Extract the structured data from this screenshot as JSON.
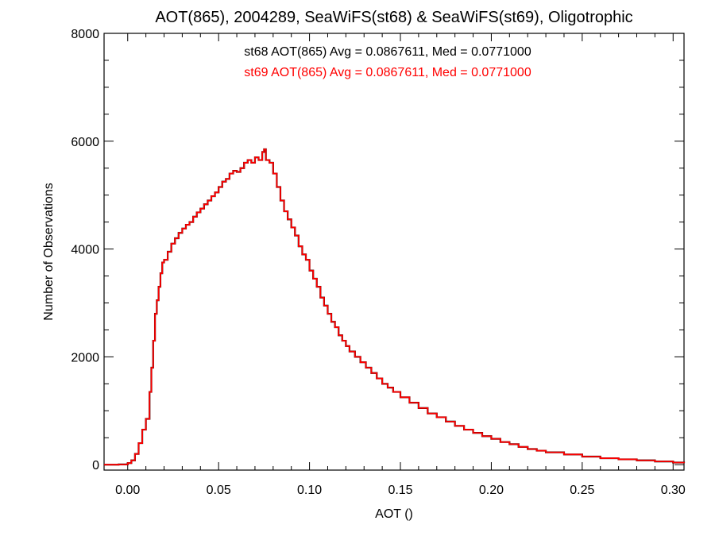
{
  "chart_data": {
    "type": "line",
    "title": "AOT(865), 2004289, SeaWiFS(st68) & SeaWiFS(st69), Oligotrophic",
    "xlabel": "AOT ()",
    "ylabel": "Number of Observations",
    "xlim": [
      -0.013,
      0.306
    ],
    "ylim": [
      -100,
      8000
    ],
    "x_ticks": [
      0.0,
      0.05,
      0.1,
      0.15,
      0.2,
      0.25,
      0.3
    ],
    "x_tick_labels": [
      "0.00",
      "0.05",
      "0.10",
      "0.15",
      "0.20",
      "0.25",
      "0.30"
    ],
    "y_ticks": [
      0,
      2000,
      4000,
      6000,
      8000
    ],
    "y_tick_labels": [
      "0",
      "2000",
      "4000",
      "6000",
      "8000"
    ],
    "grid": false,
    "step": true,
    "annotations": [
      {
        "text": "st68 AOT(865) Avg = 0.0867611, Med = 0.0771000",
        "color": "#000000"
      },
      {
        "text": "st69 AOT(865) Avg = 0.0867611, Med = 0.0771000",
        "color": "#ff0000"
      }
    ],
    "series": [
      {
        "color": "#000000",
        "x": [
          -0.013,
          -0.005,
          0.0,
          0.002,
          0.004,
          0.006,
          0.008,
          0.01,
          0.012,
          0.013,
          0.014,
          0.015,
          0.016,
          0.017,
          0.018,
          0.019,
          0.02,
          0.022,
          0.024,
          0.026,
          0.028,
          0.03,
          0.032,
          0.034,
          0.036,
          0.038,
          0.04,
          0.042,
          0.044,
          0.046,
          0.048,
          0.05,
          0.052,
          0.054,
          0.056,
          0.058,
          0.06,
          0.062,
          0.064,
          0.066,
          0.068,
          0.07,
          0.072,
          0.074,
          0.075,
          0.076,
          0.078,
          0.08,
          0.082,
          0.084,
          0.086,
          0.088,
          0.09,
          0.092,
          0.094,
          0.096,
          0.098,
          0.1,
          0.102,
          0.104,
          0.106,
          0.108,
          0.11,
          0.112,
          0.114,
          0.116,
          0.118,
          0.12,
          0.122,
          0.125,
          0.128,
          0.131,
          0.134,
          0.137,
          0.14,
          0.143,
          0.146,
          0.15,
          0.155,
          0.16,
          0.165,
          0.17,
          0.175,
          0.18,
          0.185,
          0.19,
          0.195,
          0.2,
          0.205,
          0.21,
          0.215,
          0.22,
          0.225,
          0.23,
          0.24,
          0.25,
          0.26,
          0.27,
          0.28,
          0.29,
          0.3,
          0.306
        ],
        "y": [
          0,
          5,
          30,
          80,
          200,
          400,
          650,
          850,
          1350,
          1800,
          2300,
          2800,
          3050,
          3300,
          3550,
          3750,
          3800,
          3950,
          4100,
          4200,
          4300,
          4380,
          4450,
          4500,
          4600,
          4680,
          4750,
          4830,
          4900,
          4980,
          5050,
          5150,
          5250,
          5300,
          5400,
          5450,
          5430,
          5500,
          5600,
          5650,
          5600,
          5700,
          5650,
          5800,
          5850,
          5650,
          5600,
          5400,
          5150,
          4900,
          4700,
          4550,
          4400,
          4250,
          4050,
          3900,
          3800,
          3600,
          3450,
          3300,
          3100,
          2950,
          2800,
          2650,
          2550,
          2400,
          2300,
          2200,
          2100,
          2000,
          1900,
          1800,
          1700,
          1600,
          1500,
          1430,
          1350,
          1250,
          1150,
          1050,
          950,
          880,
          800,
          720,
          650,
          590,
          530,
          480,
          420,
          380,
          330,
          290,
          260,
          230,
          190,
          150,
          120,
          100,
          80,
          60,
          40,
          30
        ]
      },
      {
        "color": "#ff0000",
        "x": [
          -0.013,
          -0.005,
          0.0,
          0.002,
          0.004,
          0.006,
          0.008,
          0.01,
          0.012,
          0.013,
          0.014,
          0.015,
          0.016,
          0.017,
          0.018,
          0.019,
          0.02,
          0.022,
          0.024,
          0.026,
          0.028,
          0.03,
          0.032,
          0.034,
          0.036,
          0.038,
          0.04,
          0.042,
          0.044,
          0.046,
          0.048,
          0.05,
          0.052,
          0.054,
          0.056,
          0.058,
          0.06,
          0.062,
          0.064,
          0.066,
          0.068,
          0.07,
          0.072,
          0.074,
          0.075,
          0.076,
          0.078,
          0.08,
          0.082,
          0.084,
          0.086,
          0.088,
          0.09,
          0.092,
          0.094,
          0.096,
          0.098,
          0.1,
          0.102,
          0.104,
          0.106,
          0.108,
          0.11,
          0.112,
          0.114,
          0.116,
          0.118,
          0.12,
          0.122,
          0.125,
          0.128,
          0.131,
          0.134,
          0.137,
          0.14,
          0.143,
          0.146,
          0.15,
          0.155,
          0.16,
          0.165,
          0.17,
          0.175,
          0.18,
          0.185,
          0.19,
          0.195,
          0.2,
          0.205,
          0.21,
          0.215,
          0.22,
          0.225,
          0.23,
          0.24,
          0.25,
          0.26,
          0.27,
          0.28,
          0.29,
          0.3,
          0.306
        ],
        "y": [
          0,
          5,
          30,
          80,
          200,
          400,
          650,
          850,
          1350,
          1800,
          2300,
          2800,
          3050,
          3300,
          3550,
          3750,
          3800,
          3950,
          4100,
          4200,
          4300,
          4380,
          4450,
          4500,
          4600,
          4680,
          4750,
          4830,
          4900,
          4980,
          5050,
          5150,
          5250,
          5300,
          5400,
          5450,
          5430,
          5500,
          5600,
          5650,
          5600,
          5700,
          5650,
          5800,
          5850,
          5650,
          5600,
          5400,
          5150,
          4900,
          4700,
          4550,
          4400,
          4250,
          4050,
          3900,
          3800,
          3600,
          3450,
          3300,
          3100,
          2950,
          2800,
          2650,
          2550,
          2400,
          2300,
          2200,
          2100,
          2000,
          1900,
          1800,
          1700,
          1600,
          1500,
          1430,
          1350,
          1250,
          1150,
          1050,
          950,
          880,
          800,
          720,
          650,
          590,
          530,
          480,
          420,
          380,
          330,
          290,
          260,
          230,
          190,
          150,
          120,
          100,
          80,
          60,
          40,
          30
        ]
      }
    ]
  }
}
